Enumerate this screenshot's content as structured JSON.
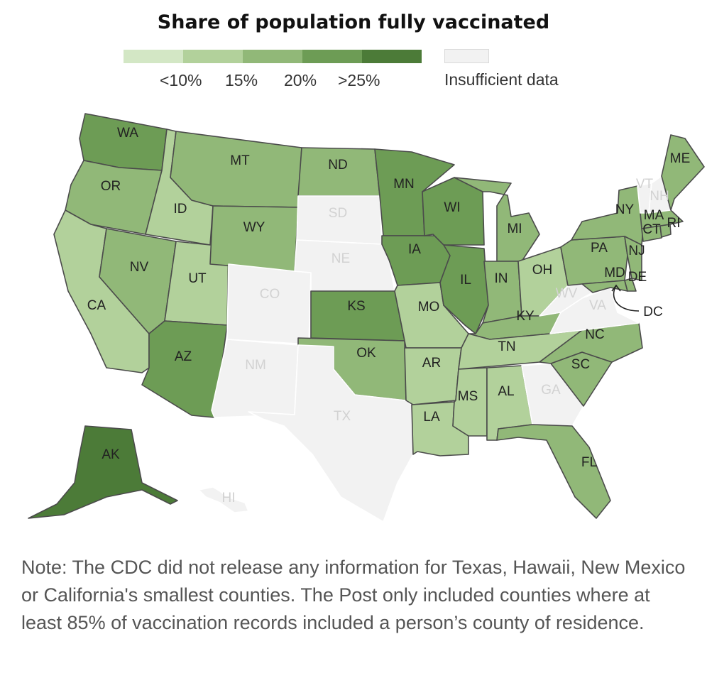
{
  "title": "Share of population fully vaccinated",
  "legend": {
    "colors": [
      "#d3e7c5",
      "#b2d19b",
      "#91b878",
      "#6d9c55",
      "#4c7b38"
    ],
    "labels": [
      "<10%",
      "15%",
      "20%",
      ">25%"
    ],
    "insufficient_color": "#f2f2f2",
    "insufficient_label": "Insufficient data"
  },
  "states": [
    {
      "abbr": "WA",
      "level": 3
    },
    {
      "abbr": "OR",
      "level": 2
    },
    {
      "abbr": "CA",
      "level": 1
    },
    {
      "abbr": "ID",
      "level": 1
    },
    {
      "abbr": "NV",
      "level": 2
    },
    {
      "abbr": "UT",
      "level": 1
    },
    {
      "abbr": "AZ",
      "level": 3
    },
    {
      "abbr": "MT",
      "level": 2
    },
    {
      "abbr": "WY",
      "level": 2
    },
    {
      "abbr": "CO",
      "level": null
    },
    {
      "abbr": "NM",
      "level": null
    },
    {
      "abbr": "ND",
      "level": 2
    },
    {
      "abbr": "SD",
      "level": null
    },
    {
      "abbr": "NE",
      "level": null
    },
    {
      "abbr": "KS",
      "level": 3
    },
    {
      "abbr": "OK",
      "level": 2
    },
    {
      "abbr": "TX",
      "level": null
    },
    {
      "abbr": "MN",
      "level": 3
    },
    {
      "abbr": "IA",
      "level": 3
    },
    {
      "abbr": "MO",
      "level": 1
    },
    {
      "abbr": "AR",
      "level": 1
    },
    {
      "abbr": "LA",
      "level": 1
    },
    {
      "abbr": "WI",
      "level": 3
    },
    {
      "abbr": "IL",
      "level": 3
    },
    {
      "abbr": "MI",
      "level": 2
    },
    {
      "abbr": "IN",
      "level": 2
    },
    {
      "abbr": "OH",
      "level": 1
    },
    {
      "abbr": "KY",
      "level": 2
    },
    {
      "abbr": "TN",
      "level": 1
    },
    {
      "abbr": "MS",
      "level": 1
    },
    {
      "abbr": "AL",
      "level": 1
    },
    {
      "abbr": "GA",
      "level": null
    },
    {
      "abbr": "FL",
      "level": 2
    },
    {
      "abbr": "SC",
      "level": 2
    },
    {
      "abbr": "NC",
      "level": 2
    },
    {
      "abbr": "VA",
      "level": null
    },
    {
      "abbr": "WV",
      "level": null
    },
    {
      "abbr": "PA",
      "level": 2
    },
    {
      "abbr": "NY",
      "level": 2
    },
    {
      "abbr": "MD",
      "level": 2
    },
    {
      "abbr": "DE",
      "level": 2
    },
    {
      "abbr": "NJ",
      "level": 2
    },
    {
      "abbr": "CT",
      "level": 2
    },
    {
      "abbr": "RI",
      "level": 2
    },
    {
      "abbr": "MA",
      "level": 2
    },
    {
      "abbr": "VT",
      "level": null
    },
    {
      "abbr": "NH",
      "level": null
    },
    {
      "abbr": "ME",
      "level": 2
    },
    {
      "abbr": "AK",
      "level": 4
    },
    {
      "abbr": "HI",
      "level": null
    }
  ],
  "dc_label": "DC",
  "note": "Note: The CDC did not release any information for Texas, Hawaii, New Mexico or California's smallest counties. The Post only included counties where at least 85% of vaccination records included a person’s county of residence."
}
